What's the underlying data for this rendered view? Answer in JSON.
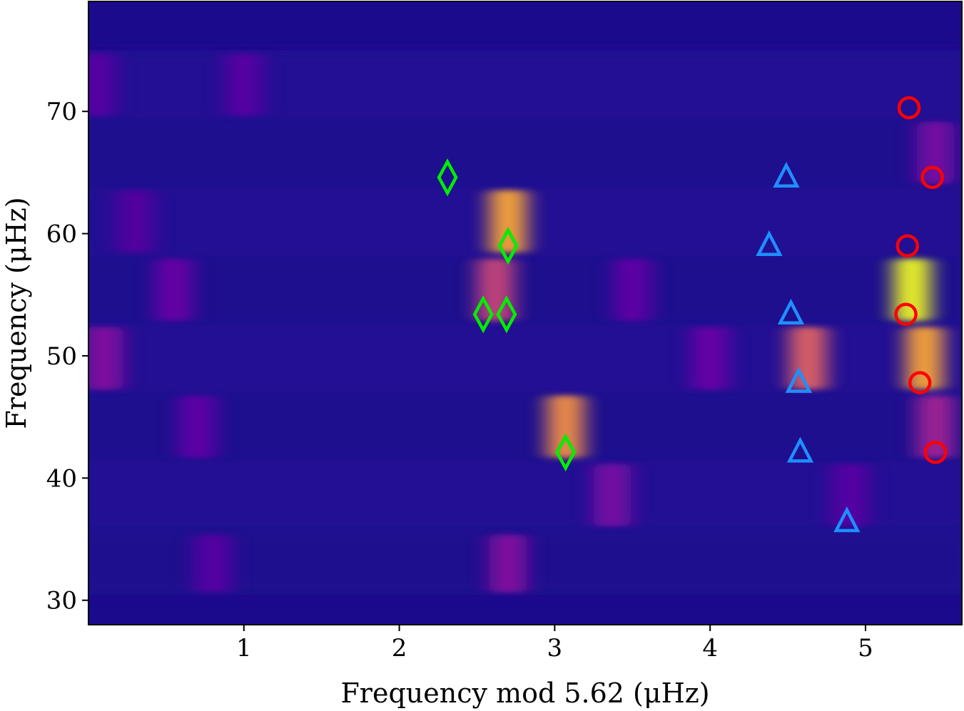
{
  "chart_data": {
    "type": "heatmap",
    "title": "",
    "xlabel": "Frequency mod 5.62 (μHz)",
    "ylabel": "Frequency (μHz)",
    "xlim": [
      0,
      5.62
    ],
    "ylim": [
      28,
      79
    ],
    "xticks": [
      1,
      2,
      3,
      4,
      5
    ],
    "yticks": [
      30,
      40,
      50,
      60,
      70
    ],
    "grid": false,
    "legend": "none",
    "colormap": "plasma",
    "heatmap": {
      "rows": [
        {
          "y_center": 33.0,
          "y_range": [
            30.4,
            35.6
          ]
        },
        {
          "y_center": 38.6,
          "y_range": [
            35.8,
            41.4
          ]
        },
        {
          "y_center": 44.2,
          "y_range": [
            41.4,
            47.0
          ]
        },
        {
          "y_center": 49.8,
          "y_range": [
            47.0,
            52.6
          ]
        },
        {
          "y_center": 55.4,
          "y_range": [
            52.6,
            58.2
          ]
        },
        {
          "y_center": 61.0,
          "y_range": [
            58.2,
            63.8
          ]
        },
        {
          "y_center": 66.6,
          "y_range": [
            63.8,
            69.4
          ]
        },
        {
          "y_center": 72.2,
          "y_range": [
            69.4,
            75.0
          ]
        }
      ],
      "hotspots": [
        {
          "x": 2.7,
          "y_range": [
            58.2,
            63.8
          ],
          "intensity": 0.85
        },
        {
          "x": 2.62,
          "y_range": [
            52.6,
            58.2
          ],
          "intensity": 0.6
        },
        {
          "x": 3.07,
          "y_range": [
            41.4,
            47.0
          ],
          "intensity": 0.8
        },
        {
          "x": 5.3,
          "y_range": [
            52.6,
            58.2
          ],
          "intensity": 1.0
        },
        {
          "x": 5.38,
          "y_range": [
            47.0,
            52.6
          ],
          "intensity": 0.85
        },
        {
          "x": 4.63,
          "y_range": [
            47.0,
            52.6
          ],
          "intensity": 0.7
        },
        {
          "x": 5.45,
          "y_range": [
            41.4,
            47.0
          ],
          "intensity": 0.45
        },
        {
          "x": 0.1,
          "y_range": [
            47.0,
            52.6
          ],
          "intensity": 0.35
        },
        {
          "x": 2.7,
          "y_range": [
            30.4,
            35.6
          ],
          "intensity": 0.35
        },
        {
          "x": 3.37,
          "y_range": [
            35.8,
            41.4
          ],
          "intensity": 0.3
        },
        {
          "x": 0.55,
          "y_range": [
            52.6,
            58.2
          ],
          "intensity": 0.25
        },
        {
          "x": 0.7,
          "y_range": [
            41.4,
            47.0
          ],
          "intensity": 0.22
        },
        {
          "x": 4.0,
          "y_range": [
            47.0,
            52.6
          ],
          "intensity": 0.25
        },
        {
          "x": 5.45,
          "y_range": [
            63.8,
            69.4
          ],
          "intensity": 0.3
        },
        {
          "x": 0.05,
          "y_range": [
            69.4,
            75.0
          ],
          "intensity": 0.2
        },
        {
          "x": 1.0,
          "y_range": [
            69.4,
            75.0
          ],
          "intensity": 0.2
        },
        {
          "x": 4.9,
          "y_range": [
            35.8,
            41.4
          ],
          "intensity": 0.2
        },
        {
          "x": 3.5,
          "y_range": [
            52.6,
            58.2
          ],
          "intensity": 0.22
        },
        {
          "x": 0.3,
          "y_range": [
            58.2,
            63.8
          ],
          "intensity": 0.18
        },
        {
          "x": 0.8,
          "y_range": [
            30.4,
            35.6
          ],
          "intensity": 0.2
        }
      ]
    },
    "series": [
      {
        "marker": "diamond",
        "color": "#00ee00",
        "points": [
          {
            "x": 2.31,
            "y": 64.6
          },
          {
            "x": 2.7,
            "y": 59.0
          },
          {
            "x": 2.54,
            "y": 53.4
          },
          {
            "x": 2.69,
            "y": 53.4
          },
          {
            "x": 3.07,
            "y": 42.1
          }
        ]
      },
      {
        "marker": "triangle",
        "color": "#1e8fff",
        "points": [
          {
            "x": 4.49,
            "y": 64.6
          },
          {
            "x": 4.38,
            "y": 59.0
          },
          {
            "x": 4.52,
            "y": 53.4
          },
          {
            "x": 4.57,
            "y": 47.8
          },
          {
            "x": 4.58,
            "y": 42.1
          },
          {
            "x": 4.88,
            "y": 36.4
          }
        ]
      },
      {
        "marker": "circle",
        "color": "#ff0000",
        "points": [
          {
            "x": 5.28,
            "y": 70.3
          },
          {
            "x": 5.43,
            "y": 64.6
          },
          {
            "x": 5.27,
            "y": 59.0
          },
          {
            "x": 5.26,
            "y": 53.4
          },
          {
            "x": 5.35,
            "y": 47.8
          },
          {
            "x": 5.45,
            "y": 42.1
          }
        ]
      }
    ]
  }
}
